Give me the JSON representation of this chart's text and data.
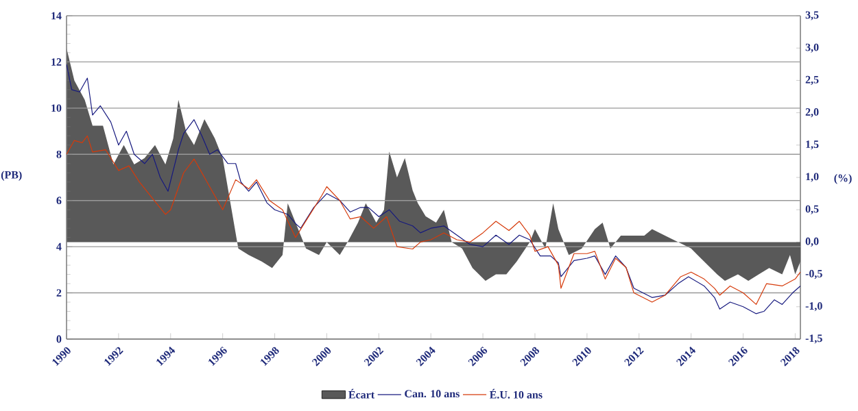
{
  "chart_data": {
    "type": "line",
    "ylabel": "(PB)",
    "y2label": "(%)",
    "xlim": [
      1990,
      2018.2
    ],
    "xticks": [
      1990,
      1992,
      1994,
      1996,
      1998,
      2000,
      2002,
      2004,
      2006,
      2008,
      2010,
      2012,
      2014,
      2016,
      2018
    ],
    "ylim": [
      0,
      14
    ],
    "yticks": [
      0,
      2,
      4,
      6,
      8,
      10,
      12,
      14
    ],
    "y2lim": [
      -1.5,
      3.5
    ],
    "y2ticks": [
      {
        "value": -1.5,
        "label": "-1,5"
      },
      {
        "value": -1.0,
        "label": "-1,0"
      },
      {
        "value": -0.5,
        "label": "-0,5"
      },
      {
        "value": 0,
        "label": "0,0"
      },
      {
        "value": 0.5,
        "label": "0,5"
      },
      {
        "value": 1.0,
        "label": "1,0"
      },
      {
        "value": 1.5,
        "label": "1,5"
      },
      {
        "value": 2.0,
        "label": "2,0"
      },
      {
        "value": 2.5,
        "label": "2,5"
      },
      {
        "value": 3.0,
        "label": "3,0"
      },
      {
        "value": 3.5,
        "label": "3,5"
      }
    ],
    "grid": "y",
    "legend": "bottom",
    "marker": "none",
    "series": [
      {
        "name": "Écart",
        "type": "area",
        "axis": "y2",
        "color": "#595959",
        "x": [
          1990.0,
          1990.3,
          1990.7,
          1991.0,
          1991.4,
          1991.8,
          1992.2,
          1992.6,
          1993.0,
          1993.4,
          1993.8,
          1994.1,
          1994.3,
          1994.6,
          1994.9,
          1995.3,
          1995.7,
          1996.0,
          1996.3,
          1996.6,
          1997.0,
          1997.5,
          1997.9,
          1998.3,
          1998.5,
          1998.8,
          1999.2,
          1999.7,
          2000.0,
          2000.5,
          2000.8,
          2001.2,
          2001.5,
          2001.9,
          2002.2,
          2002.4,
          2002.7,
          2003.0,
          2003.3,
          2003.5,
          2003.8,
          2004.2,
          2004.5,
          2004.8,
          2005.2,
          2005.6,
          2006.1,
          2006.5,
          2006.9,
          2007.3,
          2007.8,
          2008.0,
          2008.4,
          2008.7,
          2008.9,
          2009.3,
          2009.8,
          2010.3,
          2010.6,
          2010.9,
          2011.3,
          2011.8,
          2012.2,
          2012.5,
          2013.0,
          2013.5,
          2014.0,
          2014.5,
          2015.0,
          2015.3,
          2015.8,
          2016.2,
          2016.6,
          2017.0,
          2017.5,
          2017.8,
          2018.0,
          2018.2
        ],
        "values": [
          3.0,
          2.5,
          2.2,
          1.8,
          1.8,
          1.2,
          1.5,
          1.2,
          1.3,
          1.5,
          1.2,
          1.6,
          2.2,
          1.7,
          1.5,
          1.9,
          1.6,
          1.3,
          0.6,
          -0.1,
          -0.2,
          -0.3,
          -0.4,
          -0.2,
          0.6,
          0.3,
          -0.1,
          -0.2,
          0.0,
          -0.2,
          0.0,
          0.3,
          0.6,
          0.3,
          0.5,
          1.4,
          1.0,
          1.3,
          0.8,
          0.6,
          0.4,
          0.3,
          0.5,
          0.0,
          -0.1,
          -0.4,
          -0.6,
          -0.5,
          -0.5,
          -0.3,
          0.0,
          0.2,
          -0.1,
          0.6,
          0.2,
          -0.2,
          -0.1,
          0.2,
          0.3,
          -0.1,
          0.1,
          0.1,
          0.1,
          0.2,
          0.1,
          0.0,
          -0.1,
          -0.3,
          -0.5,
          -0.6,
          -0.5,
          -0.6,
          -0.5,
          -0.4,
          -0.5,
          -0.2,
          -0.5,
          -0.3
        ]
      },
      {
        "name": "Can. 10 ans",
        "type": "line",
        "color": "#16197f",
        "x": [
          1990.0,
          1990.2,
          1990.5,
          1990.8,
          1991.0,
          1991.3,
          1991.7,
          1992.0,
          1992.3,
          1992.6,
          1993.0,
          1993.3,
          1993.6,
          1993.9,
          1994.3,
          1994.5,
          1994.9,
          1995.2,
          1995.5,
          1995.8,
          1996.2,
          1996.5,
          1996.7,
          1997.0,
          1997.3,
          1997.7,
          1998.0,
          1998.5,
          1998.8,
          1999.0,
          1999.5,
          2000.0,
          2000.5,
          2000.9,
          2001.3,
          2001.6,
          2002.0,
          2002.4,
          2002.8,
          2003.3,
          2003.6,
          2004.0,
          2004.5,
          2005.0,
          2005.5,
          2006.0,
          2006.5,
          2007.0,
          2007.4,
          2007.8,
          2008.2,
          2008.6,
          2008.9,
          2009.0,
          2009.5,
          2010.0,
          2010.3,
          2010.7,
          2011.1,
          2011.5,
          2011.8,
          2012.5,
          2013.0,
          2013.5,
          2013.9,
          2014.5,
          2014.9,
          2015.1,
          2015.5,
          2016.0,
          2016.5,
          2016.8,
          2017.2,
          2017.5,
          2017.9,
          2018.2
        ],
        "values": [
          11.9,
          10.8,
          10.7,
          11.3,
          9.7,
          10.1,
          9.4,
          8.4,
          9.0,
          8.0,
          7.6,
          8.0,
          7.0,
          6.4,
          8.2,
          8.9,
          9.5,
          8.8,
          8.0,
          8.2,
          7.6,
          7.6,
          6.8,
          6.4,
          6.8,
          5.9,
          5.6,
          5.4,
          5.0,
          4.8,
          5.7,
          6.3,
          6.0,
          5.5,
          5.7,
          5.7,
          5.3,
          5.6,
          5.1,
          4.9,
          4.6,
          4.8,
          4.9,
          4.5,
          4.1,
          4.0,
          4.5,
          4.1,
          4.5,
          4.3,
          3.6,
          3.6,
          3.3,
          2.7,
          3.4,
          3.5,
          3.6,
          2.8,
          3.6,
          3.1,
          2.2,
          1.8,
          1.9,
          2.4,
          2.7,
          2.3,
          1.8,
          1.3,
          1.6,
          1.4,
          1.1,
          1.2,
          1.7,
          1.5,
          2.0,
          2.3
        ]
      },
      {
        "name": "É.U. 10 ans",
        "type": "line",
        "color": "#d63a0a",
        "x": [
          1990.0,
          1990.3,
          1990.6,
          1990.8,
          1991.0,
          1991.5,
          1992.0,
          1992.4,
          1992.8,
          1993.3,
          1993.8,
          1994.0,
          1994.5,
          1994.9,
          1995.3,
          1995.8,
          1996.0,
          1996.5,
          1997.0,
          1997.3,
          1997.8,
          1998.3,
          1998.8,
          1999.3,
          1999.8,
          2000.0,
          2000.5,
          2000.9,
          2001.3,
          2001.8,
          2002.3,
          2002.7,
          2003.3,
          2003.6,
          2004.0,
          2004.5,
          2005.0,
          2005.5,
          2006.0,
          2006.5,
          2007.0,
          2007.4,
          2007.8,
          2008.0,
          2008.5,
          2008.9,
          2009.0,
          2009.5,
          2010.0,
          2010.3,
          2010.7,
          2011.1,
          2011.5,
          2011.8,
          2012.5,
          2013.0,
          2013.6,
          2014.0,
          2014.5,
          2014.9,
          2015.1,
          2015.5,
          2016.0,
          2016.5,
          2016.9,
          2017.5,
          2018.0,
          2018.2
        ],
        "values": [
          8.0,
          8.6,
          8.5,
          8.8,
          8.1,
          8.2,
          7.3,
          7.5,
          6.8,
          6.1,
          5.4,
          5.6,
          7.2,
          7.8,
          7.0,
          6.0,
          5.6,
          6.9,
          6.5,
          6.9,
          6.0,
          5.6,
          4.4,
          5.3,
          6.2,
          6.6,
          6.0,
          5.2,
          5.3,
          4.8,
          5.3,
          4.0,
          3.9,
          4.2,
          4.3,
          4.6,
          4.3,
          4.2,
          4.6,
          5.1,
          4.7,
          5.1,
          4.5,
          3.8,
          4.0,
          3.2,
          2.2,
          3.7,
          3.7,
          3.8,
          2.6,
          3.5,
          3.1,
          2.0,
          1.6,
          1.9,
          2.7,
          2.9,
          2.6,
          2.2,
          1.9,
          2.3,
          2.0,
          1.5,
          2.4,
          2.3,
          2.6,
          2.9
        ]
      }
    ]
  }
}
